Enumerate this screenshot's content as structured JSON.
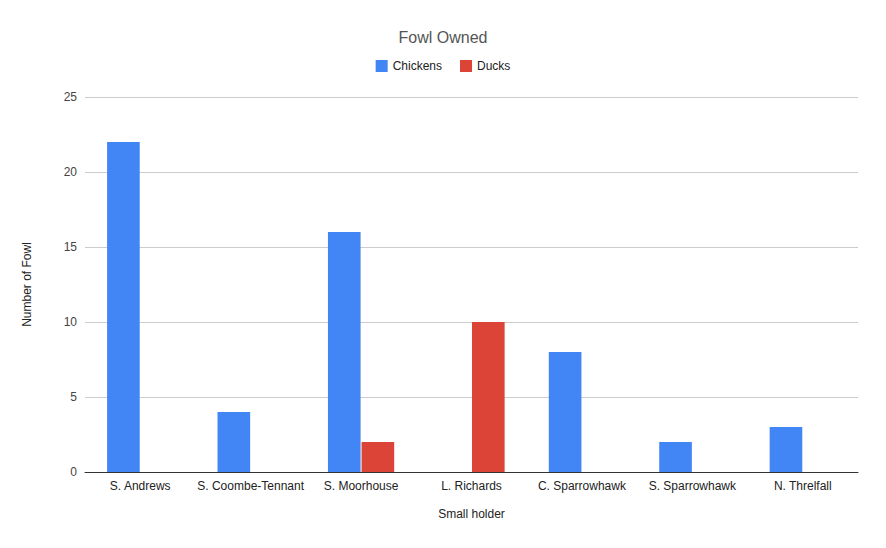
{
  "chart_data": {
    "type": "bar",
    "title": "Fowl Owned",
    "x_label": "Small holder",
    "y_label": "Number of Fowl",
    "categories": [
      "S. Andrews",
      "S. Coombe-Tennant",
      "S. Moorhouse",
      "L. Richards",
      "C. Sparrowhawk",
      "S. Sparrowhawk",
      "N. Threlfall"
    ],
    "series": [
      {
        "name": "Chickens",
        "color": "#4285f4",
        "values": [
          22,
          4,
          16,
          null,
          8,
          2,
          3
        ]
      },
      {
        "name": "Ducks",
        "color": "#db4437",
        "values": [
          null,
          null,
          2,
          10,
          null,
          null,
          null
        ]
      }
    ],
    "ylim": [
      0,
      25
    ],
    "yticks": [
      0,
      5,
      10,
      15,
      20,
      25
    ],
    "grid": true,
    "legend": "top"
  }
}
